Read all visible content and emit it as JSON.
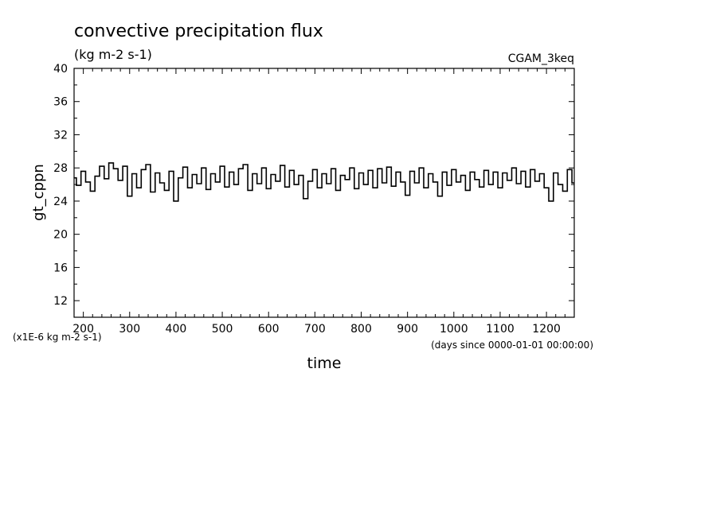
{
  "chart_data": {
    "type": "line",
    "title": "convective precipitation flux",
    "subtitle": "(kg m-2 s-1)",
    "dataset_label": "CGAM_3keq",
    "ylabel": "gt_cppn",
    "xlabel": "time",
    "x_units": "(days since 0000-01-01 00:00:00)",
    "y_scale_note": "(x1E-6 kg m-2 s-1)",
    "xlim": [
      180,
      1260
    ],
    "ylim": [
      10,
      40
    ],
    "x_ticks": [
      200,
      300,
      400,
      500,
      600,
      700,
      800,
      900,
      1000,
      1100,
      1200
    ],
    "y_ticks": [
      12,
      16,
      20,
      24,
      28,
      32,
      36,
      40
    ],
    "grid": false,
    "line_color": "#000000",
    "series": [
      {
        "x": [
          180,
          190,
          200,
          210,
          220,
          230,
          240,
          250,
          260,
          270,
          280,
          290,
          300,
          310,
          320,
          330,
          340,
          350,
          360,
          370,
          380,
          390,
          400,
          410,
          420,
          430,
          440,
          450,
          460,
          470,
          480,
          490,
          500,
          510,
          520,
          530,
          540,
          550,
          560,
          570,
          580,
          590,
          600,
          610,
          620,
          630,
          640,
          650,
          660,
          670,
          680,
          690,
          700,
          710,
          720,
          730,
          740,
          750,
          760,
          770,
          780,
          790,
          800,
          810,
          820,
          830,
          840,
          850,
          860,
          870,
          880,
          890,
          900,
          910,
          920,
          930,
          940,
          950,
          960,
          970,
          980,
          990,
          1000,
          1010,
          1020,
          1030,
          1040,
          1050,
          1060,
          1070,
          1080,
          1090,
          1100,
          1110,
          1120,
          1130,
          1140,
          1150,
          1160,
          1170,
          1180,
          1190,
          1200,
          1210,
          1220,
          1230,
          1240,
          1250,
          1260
        ],
        "values": [
          26.8,
          25.9,
          27.6,
          26.3,
          25.2,
          27.0,
          28.2,
          26.7,
          28.6,
          27.9,
          26.5,
          28.2,
          24.6,
          27.3,
          25.6,
          27.8,
          28.4,
          25.1,
          27.4,
          26.2,
          25.3,
          27.6,
          24.0,
          26.8,
          28.1,
          25.6,
          27.2,
          26.1,
          28.0,
          25.4,
          27.3,
          26.3,
          28.2,
          25.7,
          27.5,
          26.0,
          27.9,
          28.4,
          25.3,
          27.3,
          26.1,
          28.0,
          25.5,
          27.2,
          26.4,
          28.3,
          25.7,
          27.7,
          26.0,
          27.1,
          24.3,
          26.4,
          27.8,
          25.6,
          27.3,
          26.1,
          27.9,
          25.3,
          27.1,
          26.6,
          28.0,
          25.5,
          27.4,
          26.0,
          27.7,
          25.6,
          27.9,
          26.2,
          28.1,
          25.8,
          27.5,
          26.3,
          24.7,
          27.6,
          26.2,
          28.0,
          25.6,
          27.3,
          26.3,
          24.6,
          27.5,
          25.9,
          27.8,
          26.3,
          27.1,
          25.3,
          27.5,
          26.6,
          25.7,
          27.7,
          26.0,
          27.5,
          25.6,
          27.4,
          26.5,
          28.0,
          26.1,
          27.6,
          25.7,
          27.8,
          26.4,
          27.3,
          25.6,
          24.0,
          27.4,
          26.0,
          25.2,
          27.8,
          26.2
        ]
      }
    ]
  }
}
